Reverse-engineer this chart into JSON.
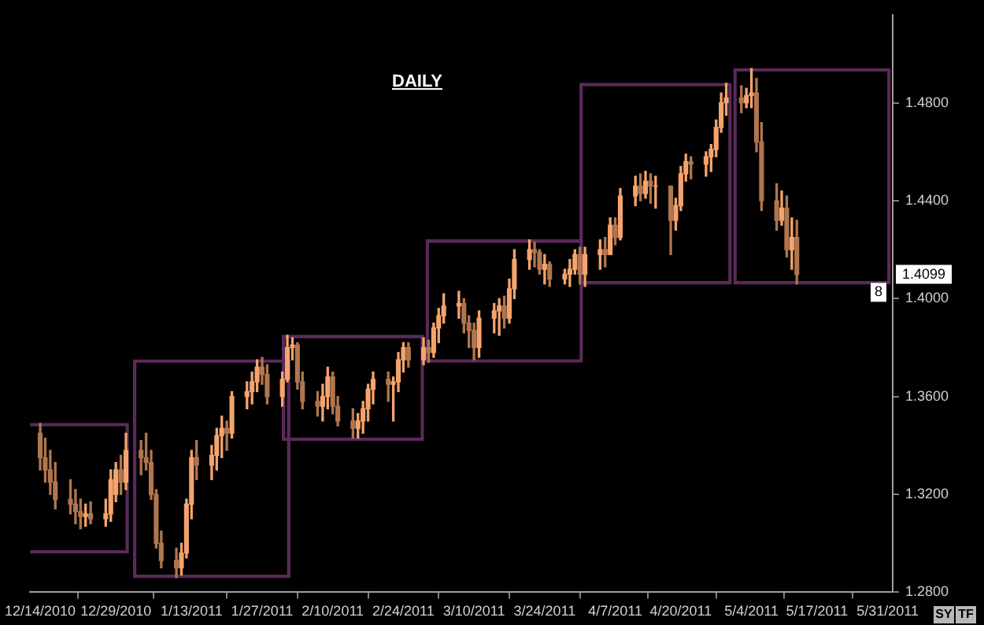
{
  "chart_data": {
    "type": "candlestick",
    "title": "DAILY",
    "xlim": [
      "2010-12-12",
      "2011-06-01"
    ],
    "xticks": [
      {
        "value": "2010-12-14",
        "label": "12/14/2010"
      },
      {
        "value": "2010-12-29",
        "label": "12/29/2010"
      },
      {
        "value": "2011-01-13",
        "label": "1/13/2011"
      },
      {
        "value": "2011-01-27",
        "label": "1/27/2011"
      },
      {
        "value": "2011-02-10",
        "label": "2/10/2011"
      },
      {
        "value": "2011-02-24",
        "label": "2/24/2011"
      },
      {
        "value": "2011-03-10",
        "label": "3/10/2011"
      },
      {
        "value": "2011-03-24",
        "label": "3/24/2011"
      },
      {
        "value": "2011-04-07",
        "label": "4/7/2011"
      },
      {
        "value": "2011-04-20",
        "label": "4/20/2011"
      },
      {
        "value": "2011-05-04",
        "label": "5/4/2011"
      },
      {
        "value": "2011-05-17",
        "label": "5/17/2011"
      },
      {
        "value": "2011-05-31",
        "label": "5/31/2011"
      }
    ],
    "ylim": [
      1.28,
      1.516
    ],
    "yticks": [
      {
        "value": 1.28,
        "label": "1.2800"
      },
      {
        "value": 1.32,
        "label": "1.3200"
      },
      {
        "value": 1.36,
        "label": "1.3600"
      },
      {
        "value": 1.4,
        "label": "1.4000"
      },
      {
        "value": 1.44,
        "label": "1.4400"
      },
      {
        "value": 1.48,
        "label": "1.4800"
      }
    ],
    "annotations": [
      "1.4099",
      "8",
      "SY",
      "TF"
    ],
    "series": [
      {
        "colors": [
          "#b0764e",
          "#b0764e",
          "#b0764e",
          "#b0764e",
          "#b0764e",
          "#b0764e",
          "#b0764e",
          "#f4a46c",
          "#b0764e",
          "#f4a46c",
          "#f4a46c",
          "#f4a46c",
          "#b0764e",
          "#f4a46c",
          "#b0764e",
          "#b0764e",
          "#b0764e",
          "#b0764e",
          "#b0764e",
          "#b0764e",
          "#f4a46c",
          "#f4a46c",
          "#f4a46c",
          "#b0764e",
          "#f4a46c",
          "#f4a46c",
          "#f4a46c",
          "#b0764e",
          "#f4a46c",
          "#f4a46c",
          "#f4a46c",
          "#f4a46c",
          "#b0764e",
          "#b0764e",
          "#f4a46c",
          "#f4a46c",
          "#f4a46c",
          "#b0764e",
          "#b0764e",
          "#b0764e",
          "#f4a46c",
          "#f4a46c",
          "#b0764e",
          "#b0764e",
          "#b0764e",
          "#f4a46c",
          "#f4a46c",
          "#f4a46c",
          "#f4a46c",
          "#b0764e",
          "#f4a46c",
          "#f4a46c",
          "#f4a46c",
          "#b0764e",
          "#f4a46c",
          "#b0764e",
          "#f4a46c",
          "#f4a46c",
          "#f4a46c",
          "#f4a46c",
          "#b0764e",
          "#b0764e",
          "#b0764e",
          "#f4a46c",
          "#f4a46c",
          "#f4a46c",
          "#b0764e",
          "#f4a46c",
          "#f4a46c",
          "#f4a46c",
          "#b0764e",
          "#b0764e",
          "#f4a46c",
          "#b0764e",
          "#f4a46c",
          "#f4a46c",
          "#f4a46c",
          "#b0764e",
          "#f4a46c",
          "#f4a46c",
          "#b0764e",
          "#f4a46c",
          "#b0764e",
          "#f4a46c",
          "#f4a46c",
          "#b0764e",
          "#f4a46c",
          "#b0764e",
          "#f4a46c",
          "#b0764e",
          "#f4a46c",
          "#f4a46c",
          "#f4a46c",
          "#b0764e",
          "#f4a46c",
          "#f4a46c",
          "#f4a46c",
          "#f4a46c",
          "#f4a46c",
          "#b0764e",
          "#f4a46c",
          "#f4a46c",
          "#b0764e",
          "#b0764e",
          "#b0764e",
          "#f4a46c",
          "#b0764e",
          "#f4a46c",
          "#b0764e"
        ],
        "x": [
          "2010-12-14",
          "2010-12-15",
          "2010-12-16",
          "2010-12-17",
          "2010-12-20",
          "2010-12-21",
          "2010-12-22",
          "2010-12-23",
          "2010-12-24",
          "2010-12-27",
          "2010-12-28",
          "2010-12-29",
          "2010-12-30",
          "2010-12-31",
          "2011-01-03",
          "2011-01-04",
          "2011-01-05",
          "2011-01-06",
          "2011-01-07",
          "2011-01-10",
          "2011-01-11",
          "2011-01-12",
          "2011-01-13",
          "2011-01-14",
          "2011-01-17",
          "2011-01-18",
          "2011-01-19",
          "2011-01-20",
          "2011-01-21",
          "2011-01-24",
          "2011-01-25",
          "2011-01-26",
          "2011-01-27",
          "2011-01-28",
          "2011-01-31",
          "2011-02-01",
          "2011-02-02",
          "2011-02-03",
          "2011-02-04",
          "2011-02-07",
          "2011-02-08",
          "2011-02-09",
          "2011-02-10",
          "2011-02-11",
          "2011-02-14",
          "2011-02-15",
          "2011-02-16",
          "2011-02-17",
          "2011-02-18",
          "2011-02-21",
          "2011-02-22",
          "2011-02-23",
          "2011-02-24",
          "2011-02-25",
          "2011-02-28",
          "2011-03-01",
          "2011-03-02",
          "2011-03-03",
          "2011-03-04",
          "2011-03-07",
          "2011-03-08",
          "2011-03-09",
          "2011-03-10",
          "2011-03-11",
          "2011-03-14",
          "2011-03-15",
          "2011-03-16",
          "2011-03-17",
          "2011-03-18",
          "2011-03-21",
          "2011-03-22",
          "2011-03-23",
          "2011-03-24",
          "2011-03-25",
          "2011-03-28",
          "2011-03-29",
          "2011-03-30",
          "2011-03-31",
          "2011-04-01",
          "2011-04-04",
          "2011-04-05",
          "2011-04-06",
          "2011-04-07",
          "2011-04-08",
          "2011-04-11",
          "2011-04-12",
          "2011-04-13",
          "2011-04-14",
          "2011-04-15",
          "2011-04-18",
          "2011-04-19",
          "2011-04-20",
          "2011-04-21",
          "2011-04-22",
          "2011-04-25",
          "2011-04-26",
          "2011-04-27",
          "2011-04-28",
          "2011-04-29",
          "2011-05-02",
          "2011-05-03",
          "2011-05-04",
          "2011-05-05",
          "2011-05-06",
          "2011-05-09",
          "2011-05-10",
          "2011-05-11",
          "2011-05-12",
          "2011-05-13"
        ],
        "ohlc": [
          [
            1.345,
            1.349,
            1.33,
            1.335
          ],
          [
            1.335,
            1.343,
            1.325,
            1.33
          ],
          [
            1.33,
            1.338,
            1.32,
            1.325
          ],
          [
            1.325,
            1.333,
            1.314,
            1.318
          ],
          [
            1.318,
            1.326,
            1.312,
            1.316
          ],
          [
            1.316,
            1.322,
            1.308,
            1.313
          ],
          [
            1.313,
            1.318,
            1.306,
            1.311
          ],
          [
            1.311,
            1.316,
            1.307,
            1.312
          ],
          [
            1.312,
            1.317,
            1.308,
            1.31
          ],
          [
            1.31,
            1.318,
            1.307,
            1.312
          ],
          [
            1.312,
            1.33,
            1.309,
            1.326
          ],
          [
            1.32,
            1.333,
            1.317,
            1.33
          ],
          [
            1.33,
            1.336,
            1.32,
            1.325
          ],
          [
            1.325,
            1.345,
            1.322,
            1.338
          ],
          [
            1.338,
            1.342,
            1.328,
            1.335
          ],
          [
            1.335,
            1.345,
            1.33,
            1.333
          ],
          [
            1.333,
            1.338,
            1.318,
            1.32
          ],
          [
            1.32,
            1.322,
            1.298,
            1.3
          ],
          [
            1.3,
            1.305,
            1.29,
            1.293
          ],
          [
            1.293,
            1.298,
            1.286,
            1.29
          ],
          [
            1.29,
            1.3,
            1.287,
            1.296
          ],
          [
            1.296,
            1.318,
            1.294,
            1.316
          ],
          [
            1.316,
            1.338,
            1.31,
            1.335
          ],
          [
            1.335,
            1.342,
            1.326,
            1.332
          ],
          [
            1.332,
            1.34,
            1.326,
            1.336
          ],
          [
            1.336,
            1.347,
            1.33,
            1.344
          ],
          [
            1.344,
            1.352,
            1.335,
            1.347
          ],
          [
            1.347,
            1.35,
            1.338,
            1.345
          ],
          [
            1.345,
            1.362,
            1.343,
            1.36
          ],
          [
            1.36,
            1.366,
            1.355,
            1.362
          ],
          [
            1.362,
            1.37,
            1.357,
            1.366
          ],
          [
            1.366,
            1.375,
            1.362,
            1.372
          ],
          [
            1.372,
            1.376,
            1.365,
            1.369
          ],
          [
            1.369,
            1.373,
            1.357,
            1.36
          ],
          [
            1.36,
            1.37,
            1.356,
            1.367
          ],
          [
            1.367,
            1.385,
            1.366,
            1.38
          ],
          [
            1.38,
            1.384,
            1.375,
            1.381
          ],
          [
            1.381,
            1.382,
            1.363,
            1.366
          ],
          [
            1.366,
            1.37,
            1.355,
            1.358
          ],
          [
            1.358,
            1.362,
            1.352,
            1.356
          ],
          [
            1.356,
            1.365,
            1.35,
            1.36
          ],
          [
            1.36,
            1.372,
            1.355,
            1.368
          ],
          [
            1.368,
            1.37,
            1.353,
            1.356
          ],
          [
            1.356,
            1.36,
            1.348,
            1.35
          ],
          [
            1.35,
            1.355,
            1.343,
            1.347
          ],
          [
            1.347,
            1.353,
            1.343,
            1.35
          ],
          [
            1.35,
            1.358,
            1.345,
            1.355
          ],
          [
            1.355,
            1.365,
            1.35,
            1.363
          ],
          [
            1.363,
            1.37,
            1.357,
            1.367
          ],
          [
            1.367,
            1.37,
            1.358,
            1.365
          ],
          [
            1.365,
            1.368,
            1.35,
            1.366
          ],
          [
            1.366,
            1.378,
            1.362,
            1.375
          ],
          [
            1.375,
            1.382,
            1.37,
            1.38
          ],
          [
            1.38,
            1.382,
            1.372,
            1.375
          ],
          [
            1.375,
            1.384,
            1.373,
            1.38
          ],
          [
            1.38,
            1.383,
            1.374,
            1.378
          ],
          [
            1.378,
            1.39,
            1.376,
            1.388
          ],
          [
            1.388,
            1.396,
            1.382,
            1.393
          ],
          [
            1.393,
            1.402,
            1.39,
            1.397
          ],
          [
            1.397,
            1.403,
            1.392,
            1.398
          ],
          [
            1.398,
            1.4,
            1.386,
            1.39
          ],
          [
            1.39,
            1.393,
            1.38,
            1.387
          ],
          [
            1.387,
            1.39,
            1.375,
            1.38
          ],
          [
            1.38,
            1.395,
            1.376,
            1.392
          ],
          [
            1.392,
            1.398,
            1.386,
            1.395
          ],
          [
            1.395,
            1.4,
            1.385,
            1.397
          ],
          [
            1.397,
            1.401,
            1.388,
            1.392
          ],
          [
            1.392,
            1.408,
            1.39,
            1.404
          ],
          [
            1.404,
            1.42,
            1.4,
            1.416
          ],
          [
            1.416,
            1.424,
            1.412,
            1.42
          ],
          [
            1.42,
            1.423,
            1.413,
            1.419
          ],
          [
            1.419,
            1.42,
            1.41,
            1.412
          ],
          [
            1.412,
            1.418,
            1.406,
            1.414
          ],
          [
            1.414,
            1.415,
            1.405,
            1.408
          ],
          [
            1.408,
            1.412,
            1.406,
            1.41
          ],
          [
            1.41,
            1.416,
            1.405,
            1.412
          ],
          [
            1.412,
            1.42,
            1.41,
            1.418
          ],
          [
            1.418,
            1.421,
            1.406,
            1.41
          ],
          [
            1.41,
            1.421,
            1.405,
            1.418
          ],
          [
            1.418,
            1.424,
            1.412,
            1.42
          ],
          [
            1.42,
            1.425,
            1.413,
            1.418
          ],
          [
            1.418,
            1.433,
            1.418,
            1.43
          ],
          [
            1.43,
            1.433,
            1.422,
            1.425
          ],
          [
            1.425,
            1.445,
            1.424,
            1.442
          ],
          [
            1.442,
            1.45,
            1.438,
            1.446
          ],
          [
            1.446,
            1.451,
            1.44,
            1.443
          ],
          [
            1.443,
            1.452,
            1.441,
            1.448
          ],
          [
            1.448,
            1.451,
            1.439,
            1.446
          ],
          [
            1.446,
            1.45,
            1.437,
            1.446
          ],
          [
            1.446,
            1.446,
            1.418,
            1.432
          ],
          [
            1.432,
            1.441,
            1.428,
            1.438
          ],
          [
            1.438,
            1.454,
            1.436,
            1.451
          ],
          [
            1.451,
            1.459,
            1.448,
            1.456
          ],
          [
            1.456,
            1.458,
            1.449,
            1.455
          ],
          [
            1.455,
            1.46,
            1.45,
            1.458
          ],
          [
            1.458,
            1.463,
            1.452,
            1.461
          ],
          [
            1.461,
            1.473,
            1.458,
            1.47
          ],
          [
            1.47,
            1.484,
            1.468,
            1.48
          ],
          [
            1.48,
            1.488,
            1.475,
            1.482
          ],
          [
            1.482,
            1.487,
            1.476,
            1.48
          ],
          [
            1.48,
            1.486,
            1.478,
            1.483
          ],
          [
            1.483,
            1.494,
            1.478,
            1.484
          ],
          [
            1.484,
            1.49,
            1.46,
            1.464
          ],
          [
            1.464,
            1.472,
            1.436,
            1.44
          ],
          [
            1.44,
            1.447,
            1.428,
            1.432
          ],
          [
            1.432,
            1.444,
            1.43,
            1.437
          ],
          [
            1.437,
            1.442,
            1.417,
            1.42
          ],
          [
            1.42,
            1.433,
            1.412,
            1.425
          ],
          [
            1.425,
            1.432,
            1.406,
            1.4099
          ]
        ]
      },
      {
        "type": "bar",
        "color": "#5a2a5a",
        "x": [
          "2010-12-16",
          "2011-01-17",
          "2011-02-14",
          "2011-03-16",
          "2011-04-15",
          "2011-05-16"
        ],
        "base": [
          1.296,
          1.286,
          1.342,
          1.374,
          1.406,
          1.406
        ],
        "values": [
          0.053,
          0.089,
          0.043,
          0.05,
          0.082,
          0.088
        ]
      }
    ]
  }
}
